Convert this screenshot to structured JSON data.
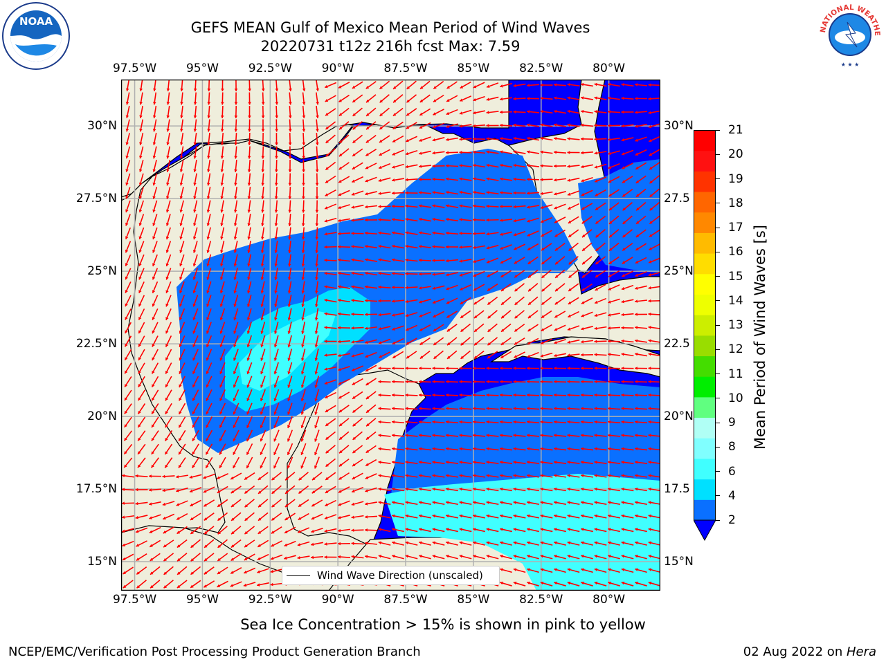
{
  "header": {
    "title_line1": "GEFS MEAN Gulf of Mexico Mean Period of Wind Waves",
    "title_line2": "20220731 t12z 216h fcst   Max: 7.59"
  },
  "logos": {
    "left": "NOAA",
    "right": "NATIONAL WEATHER SERVICE"
  },
  "map": {
    "lon_ticks": [
      "97.5°W",
      "95°W",
      "92.5°W",
      "90°W",
      "87.5°W",
      "85°W",
      "82.5°W",
      "80°W"
    ],
    "lat_ticks": [
      "30°N",
      "27.5°N",
      "25°N",
      "22.5°N",
      "20°N",
      "17.5°N",
      "15°N"
    ],
    "lat_ticks_right": [
      "30°N",
      "27.5",
      "25°N",
      "22.5",
      "20°N",
      "17.5",
      "15°N"
    ],
    "lon_extent": [
      -98,
      -78.1
    ],
    "lat_extent": [
      14,
      31.6
    ],
    "land_color": "#efeedc",
    "arrow_color": "#ff0000",
    "legend": "Wind Wave Direction (unscaled)"
  },
  "colorbar": {
    "label": "Mean Period of Wind Waves [s]",
    "ticks": [
      "2",
      "4",
      "6",
      "8",
      "9",
      "10",
      "11",
      "12",
      "13",
      "14",
      "15",
      "16",
      "17",
      "18",
      "19",
      "20",
      "21"
    ],
    "colors": [
      "#0a70ff",
      "#00e0ff",
      "#40ffff",
      "#80ffff",
      "#b0fff5",
      "#60ff80",
      "#00ee00",
      "#44dd00",
      "#99dd00",
      "#ccee00",
      "#eeff00",
      "#ffff00",
      "#ffdd00",
      "#ffbb00",
      "#ff8800",
      "#ff6600",
      "#ff3300",
      "#ff1111",
      "#ff0000"
    ],
    "under_color": "#0000ff"
  },
  "chart_data": {
    "type": "heatmap",
    "title": "GEFS MEAN Gulf of Mexico Mean Period of Wind Waves",
    "subtitle": "20220731 t12z 216h fcst   Max: 7.59",
    "max_value": 7.59,
    "colorbar_label": "Mean Period of Wind Waves [s]",
    "colorbar_range": [
      2,
      21
    ],
    "legend": [
      "Wind Wave Direction (unscaled)"
    ]
  },
  "footer": {
    "note": "Sea Ice Concentration > 15% is shown in pink to yellow",
    "credit": "NCEP/EMC/Verification Post Processing Product Generation Branch",
    "date": "02 Aug 2022 on ",
    "host": "Hera"
  }
}
